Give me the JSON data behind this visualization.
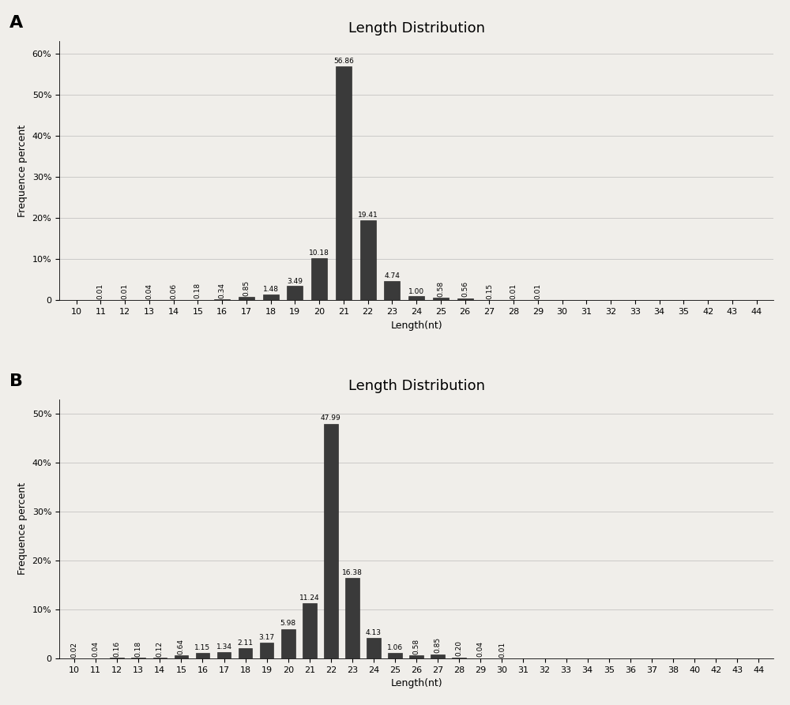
{
  "chart_A": {
    "title": "Length Distribution",
    "label": "A",
    "x_labels": [
      "10",
      "11",
      "12",
      "13",
      "14",
      "15",
      "16",
      "17",
      "18",
      "19",
      "20",
      "21",
      "22",
      "23",
      "24",
      "25",
      "26",
      "27",
      "28",
      "29",
      "30",
      "31",
      "32",
      "33",
      "34",
      "35",
      "42",
      "43",
      "44"
    ],
    "x_values": [
      10,
      11,
      12,
      13,
      14,
      15,
      16,
      17,
      18,
      19,
      20,
      21,
      22,
      23,
      24,
      25,
      26,
      27,
      28,
      29,
      30,
      31,
      32,
      33,
      34,
      35,
      42,
      43,
      44
    ],
    "values": [
      0,
      0.01,
      0.01,
      0.04,
      0.06,
      0.18,
      0.34,
      0.85,
      1.48,
      3.49,
      10.18,
      56.86,
      19.41,
      4.74,
      1.0,
      0.58,
      0.56,
      0.15,
      0.01,
      0.01,
      0,
      0,
      0,
      0,
      0,
      0,
      0,
      0,
      0
    ],
    "bar_labels": [
      "",
      "0.01",
      "0.01",
      "0.04",
      "0.06",
      "0.18",
      "0.34",
      "0.85",
      "1.48",
      "3.49",
      "10.18",
      "56.86",
      "19.41",
      "4.74",
      "1.00",
      "0.58",
      "0.56",
      "0.15",
      "0.01",
      "0.01",
      "",
      "",
      "",
      "",
      "",
      "",
      "",
      "",
      ""
    ],
    "ylabel": "Frequence percent",
    "xlabel": "Length(nt)",
    "yticks": [
      0,
      10,
      20,
      30,
      40,
      50,
      60
    ],
    "yticklabels": [
      "0",
      "10%",
      "20%",
      "30%",
      "40%",
      "50%",
      "60%"
    ],
    "ylim": [
      0,
      63
    ]
  },
  "chart_B": {
    "title": "Length Distribution",
    "label": "B",
    "x_labels": [
      "10",
      "11",
      "12",
      "13",
      "14",
      "15",
      "16",
      "17",
      "18",
      "19",
      "20",
      "21",
      "22",
      "23",
      "24",
      "25",
      "26",
      "27",
      "28",
      "29",
      "30",
      "31",
      "32",
      "33",
      "34",
      "35",
      "36",
      "37",
      "38",
      "40",
      "42",
      "43",
      "44"
    ],
    "x_values": [
      10,
      11,
      12,
      13,
      14,
      15,
      16,
      17,
      18,
      19,
      20,
      21,
      22,
      23,
      24,
      25,
      26,
      27,
      28,
      29,
      30,
      31,
      32,
      33,
      34,
      35,
      36,
      37,
      38,
      40,
      42,
      43,
      44
    ],
    "values": [
      0.02,
      0.04,
      0.16,
      0.18,
      0.12,
      0.64,
      1.15,
      1.34,
      2.11,
      3.17,
      5.98,
      11.24,
      47.99,
      16.38,
      4.13,
      1.06,
      0.58,
      0.85,
      0.2,
      0.04,
      0.01,
      0,
      0,
      0,
      0,
      0,
      0,
      0,
      0,
      0,
      0,
      0,
      0
    ],
    "bar_labels": [
      "0.02",
      "0.04",
      "0.16",
      "0.18",
      "0.12",
      "0.64",
      "1.15",
      "1.34",
      "2.11",
      "3.17",
      "5.98",
      "11.24",
      "47.99",
      "16.38",
      "4.13",
      "1.06",
      "0.58",
      "0.85",
      "0.20",
      "0.04",
      "0.01",
      "",
      "",
      "",
      "",
      "",
      "",
      "",
      "",
      "",
      "",
      "",
      ""
    ],
    "ylabel": "Frequence percent",
    "xlabel": "Length(nt)",
    "yticks": [
      0,
      10,
      20,
      30,
      40,
      50
    ],
    "yticklabels": [
      "0",
      "10%",
      "20%",
      "30%",
      "40%",
      "50%"
    ],
    "ylim": [
      0,
      53
    ]
  },
  "bar_color": "#3a3a3a",
  "bar_edge_color": "#1a1a1a",
  "background_color": "#f0eeea",
  "grid_color": "#999999",
  "label_fontsize": 6.5,
  "axis_label_fontsize": 9,
  "title_fontsize": 13,
  "tick_fontsize": 8
}
